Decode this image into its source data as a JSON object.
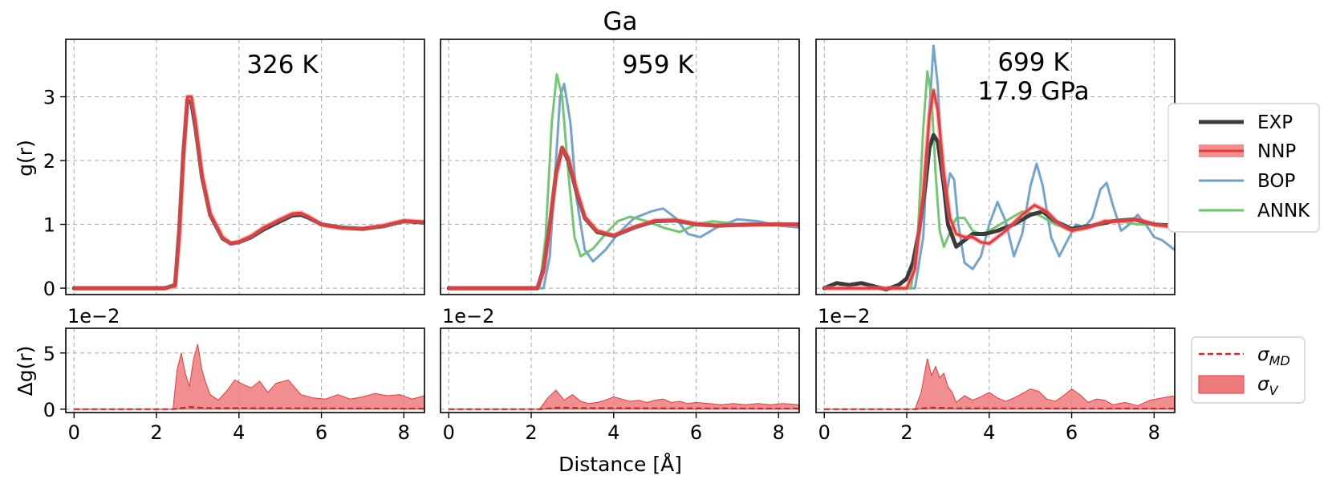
{
  "figure": {
    "title": "Ga",
    "xlabel": "Distance [Å]",
    "ylabel_top": "g(r)",
    "ylabel_bottom": "Δg(r)",
    "offset_text": "1e−2"
  },
  "colors": {
    "EXP": "#3b3b3b",
    "NNP": "#e8393b",
    "BOP": "#6a9fcb",
    "ANNK": "#6cc46c",
    "sigma_fill": "#ee7b7c",
    "sigma_line": "#d62728"
  },
  "legend_top": [
    "EXP",
    "NNP",
    "BOP",
    "ANNK"
  ],
  "legend_bottom": {
    "sigma_md": "MD",
    "sigma_v": "V"
  },
  "chart_data": [
    {
      "type": "line",
      "panel": "326 K",
      "labels": [
        "326 K"
      ],
      "xlim": [
        -0.2,
        8.5
      ],
      "ylim": [
        -0.1,
        3.9
      ],
      "xticks": [
        0,
        2,
        4,
        6,
        8
      ],
      "yticks": [
        0,
        1,
        2,
        3
      ],
      "grid": true,
      "series": [
        {
          "name": "EXP",
          "x": [
            0,
            2.2,
            2.45,
            2.55,
            2.65,
            2.75,
            2.85,
            2.95,
            3.1,
            3.3,
            3.6,
            3.8,
            4.0,
            4.3,
            4.6,
            5.0,
            5.3,
            5.5,
            5.7,
            6.0,
            6.5,
            7.0,
            7.5,
            8.0,
            8.5
          ],
          "y": [
            0,
            0,
            0.05,
            0.9,
            2.1,
            2.95,
            2.9,
            2.5,
            1.75,
            1.15,
            0.78,
            0.7,
            0.72,
            0.8,
            0.92,
            1.05,
            1.14,
            1.15,
            1.1,
            1.0,
            0.95,
            0.93,
            0.97,
            1.05,
            1.03
          ]
        },
        {
          "name": "NNP",
          "x": [
            0,
            2.2,
            2.45,
            2.55,
            2.65,
            2.75,
            2.85,
            2.95,
            3.1,
            3.3,
            3.6,
            3.8,
            4.0,
            4.3,
            4.6,
            5.0,
            5.3,
            5.5,
            5.7,
            6.0,
            6.5,
            7.0,
            7.5,
            8.0,
            8.5
          ],
          "y": [
            0,
            0,
            0.03,
            0.75,
            2.0,
            3.0,
            3.0,
            2.6,
            1.8,
            1.18,
            0.8,
            0.7,
            0.73,
            0.82,
            0.95,
            1.08,
            1.17,
            1.18,
            1.12,
            1.0,
            0.94,
            0.93,
            0.98,
            1.06,
            1.04
          ]
        }
      ],
      "delta": {
        "ylim": [
          -0.3,
          7.2
        ],
        "yticks": [
          0,
          5
        ],
        "sigma_md": {
          "x": [
            0,
            2.4,
            2.8,
            3.2,
            8.5
          ],
          "y": [
            0,
            0,
            0.2,
            0.1,
            0.05
          ]
        },
        "sigma_v": {
          "x": [
            0,
            2.4,
            2.5,
            2.6,
            2.7,
            2.8,
            2.9,
            3.0,
            3.1,
            3.2,
            3.3,
            3.5,
            3.7,
            3.9,
            4.1,
            4.3,
            4.5,
            4.7,
            4.9,
            5.2,
            5.5,
            5.8,
            6.1,
            6.4,
            6.7,
            7.0,
            7.3,
            7.6,
            7.9,
            8.2,
            8.5
          ],
          "y": [
            0,
            0,
            3.5,
            5.0,
            3.2,
            2.0,
            4.5,
            5.8,
            3.5,
            2.3,
            1.3,
            0.8,
            1.6,
            2.6,
            2.2,
            1.9,
            2.5,
            1.5,
            2.3,
            2.6,
            1.3,
            1.0,
            0.9,
            1.3,
            0.9,
            1.1,
            1.4,
            1.2,
            1.3,
            0.9,
            1.2
          ]
        }
      }
    },
    {
      "type": "line",
      "panel": "959 K",
      "labels": [
        "959 K"
      ],
      "xlim": [
        -0.2,
        8.5
      ],
      "ylim": [
        -0.1,
        3.9
      ],
      "xticks": [
        0,
        2,
        4,
        6,
        8
      ],
      "yticks": [
        0,
        1,
        2,
        3
      ],
      "grid": true,
      "series": [
        {
          "name": "EXP",
          "x": [
            0,
            2.15,
            2.3,
            2.45,
            2.6,
            2.75,
            2.9,
            3.1,
            3.3,
            3.6,
            4.0,
            4.5,
            5.0,
            5.5,
            6.0,
            6.5,
            7.0,
            7.5,
            8.0,
            8.5
          ],
          "y": [
            0,
            0,
            0.3,
            1.0,
            1.8,
            2.2,
            2.0,
            1.5,
            1.1,
            0.88,
            0.82,
            0.95,
            1.05,
            1.06,
            1.0,
            0.98,
            0.99,
            1.0,
            1.0,
            1.0
          ]
        },
        {
          "name": "NNP",
          "x": [
            0,
            2.15,
            2.3,
            2.45,
            2.6,
            2.75,
            2.9,
            3.1,
            3.3,
            3.6,
            4.0,
            4.5,
            5.0,
            5.5,
            6.0,
            6.5,
            7.0,
            7.5,
            8.0,
            8.5
          ],
          "y": [
            0,
            0,
            0.25,
            0.95,
            1.75,
            2.2,
            2.05,
            1.55,
            1.12,
            0.9,
            0.83,
            0.96,
            1.06,
            1.07,
            1.01,
            0.98,
            0.99,
            1.0,
            1.0,
            1.0
          ]
        },
        {
          "name": "BOP",
          "x": [
            0,
            2.3,
            2.45,
            2.6,
            2.7,
            2.8,
            2.95,
            3.1,
            3.3,
            3.5,
            3.8,
            4.1,
            4.5,
            4.9,
            5.2,
            5.5,
            5.8,
            6.1,
            6.5,
            7.0,
            7.5,
            8.0,
            8.5
          ],
          "y": [
            0,
            0,
            0.5,
            2.0,
            3.0,
            3.2,
            2.6,
            1.4,
            0.6,
            0.42,
            0.6,
            0.85,
            1.1,
            1.2,
            1.25,
            1.1,
            0.85,
            0.8,
            0.95,
            1.08,
            1.05,
            0.98,
            0.95
          ]
        },
        {
          "name": "ANNK",
          "x": [
            0,
            2.2,
            2.35,
            2.5,
            2.62,
            2.75,
            2.9,
            3.05,
            3.2,
            3.5,
            3.8,
            4.1,
            4.4,
            4.8,
            5.2,
            5.6,
            6.0,
            6.4,
            6.8,
            7.2,
            7.6,
            8.0,
            8.5
          ],
          "y": [
            0,
            0,
            0.8,
            2.6,
            3.35,
            3.0,
            1.8,
            0.8,
            0.5,
            0.62,
            0.85,
            1.05,
            1.12,
            1.05,
            0.95,
            0.88,
            1.0,
            1.05,
            1.02,
            0.98,
            1.0,
            1.02,
            1.0
          ]
        }
      ],
      "delta": {
        "ylim": [
          -0.3,
          7.2
        ],
        "yticks": [
          0,
          5
        ],
        "sigma_md": {
          "x": [
            0,
            2.2,
            2.7,
            3.2,
            8.5
          ],
          "y": [
            0,
            0,
            0.15,
            0.1,
            0.05
          ]
        },
        "sigma_v": {
          "x": [
            0,
            2.2,
            2.4,
            2.6,
            2.8,
            3.0,
            3.2,
            3.4,
            3.6,
            3.8,
            4.0,
            4.2,
            4.4,
            4.6,
            4.8,
            5.0,
            5.2,
            5.4,
            5.6,
            5.8,
            6.0,
            6.3,
            6.6,
            6.9,
            7.2,
            7.5,
            7.8,
            8.1,
            8.5
          ],
          "y": [
            0,
            0,
            1.0,
            1.7,
            0.8,
            1.3,
            0.7,
            0.5,
            0.6,
            0.8,
            1.1,
            0.9,
            0.7,
            0.8,
            0.6,
            0.8,
            0.9,
            0.6,
            0.7,
            0.5,
            0.6,
            0.5,
            0.4,
            0.5,
            0.4,
            0.5,
            0.4,
            0.5,
            0.4
          ]
        }
      }
    },
    {
      "type": "line",
      "panel": "699 K 17.9 GPa",
      "labels": [
        "699 K",
        "17.9 GPa"
      ],
      "xlim": [
        -0.2,
        8.5
      ],
      "ylim": [
        -0.1,
        3.9
      ],
      "xticks": [
        0,
        2,
        4,
        6,
        8
      ],
      "yticks": [
        0,
        1,
        2,
        3
      ],
      "grid": true,
      "series": [
        {
          "name": "EXP",
          "x": [
            0,
            0.3,
            0.6,
            0.9,
            1.2,
            1.5,
            1.8,
            2.0,
            2.15,
            2.3,
            2.45,
            2.55,
            2.65,
            2.75,
            2.9,
            3.0,
            3.2,
            3.4,
            3.6,
            3.9,
            4.2,
            4.6,
            5.0,
            5.3,
            5.6,
            6.0,
            6.5,
            7.0,
            7.5,
            8.0,
            8.5
          ],
          "y": [
            0,
            0.08,
            0.05,
            0.08,
            0.03,
            -0.02,
            0.05,
            0.15,
            0.4,
            0.9,
            1.6,
            2.2,
            2.4,
            2.3,
            1.6,
            1.0,
            0.65,
            0.75,
            0.85,
            0.85,
            0.9,
            1.0,
            1.15,
            1.2,
            1.05,
            0.93,
            0.98,
            1.05,
            1.08,
            1.0,
            0.98
          ]
        },
        {
          "name": "NNP",
          "x": [
            0,
            2.0,
            2.2,
            2.4,
            2.55,
            2.65,
            2.75,
            2.9,
            3.05,
            3.2,
            3.4,
            3.6,
            3.8,
            4.0,
            4.4,
            4.8,
            5.1,
            5.4,
            5.7,
            6.0,
            6.4,
            6.8,
            7.2,
            7.6,
            8.0,
            8.5
          ],
          "y": [
            0,
            0,
            0.3,
            1.5,
            2.7,
            3.1,
            2.8,
            1.8,
            1.1,
            0.85,
            0.8,
            0.8,
            0.72,
            0.7,
            0.9,
            1.15,
            1.3,
            1.2,
            1.0,
            0.9,
            0.95,
            1.05,
            1.05,
            1.08,
            1.0,
            0.95
          ]
        },
        {
          "name": "BOP",
          "x": [
            0,
            2.2,
            2.4,
            2.55,
            2.65,
            2.75,
            2.85,
            2.95,
            3.05,
            3.15,
            3.25,
            3.4,
            3.6,
            3.8,
            4.0,
            4.2,
            4.4,
            4.6,
            4.8,
            5.0,
            5.15,
            5.3,
            5.5,
            5.7,
            5.9,
            6.1,
            6.3,
            6.5,
            6.7,
            6.85,
            7.0,
            7.2,
            7.4,
            7.6,
            7.8,
            8.0,
            8.2,
            8.5
          ],
          "y": [
            0,
            0,
            0.8,
            2.8,
            3.8,
            3.2,
            2.0,
            1.4,
            1.8,
            1.7,
            1.0,
            0.4,
            0.3,
            0.5,
            1.0,
            1.35,
            1.05,
            0.5,
            0.85,
            1.6,
            1.95,
            1.6,
            0.8,
            0.5,
            0.75,
            1.0,
            0.95,
            1.1,
            1.55,
            1.65,
            1.3,
            0.9,
            1.0,
            1.15,
            1.0,
            0.8,
            0.75,
            0.6
          ]
        },
        {
          "name": "ANNK",
          "x": [
            0,
            2.1,
            2.25,
            2.4,
            2.5,
            2.6,
            2.7,
            2.8,
            2.9,
            3.0,
            3.2,
            3.4,
            3.6,
            3.8,
            4.0,
            4.4,
            4.8,
            5.2,
            5.6,
            6.0,
            6.4,
            6.8,
            7.2,
            7.6,
            8.0,
            8.5
          ],
          "y": [
            0,
            0,
            0.6,
            2.5,
            3.4,
            3.0,
            1.8,
            0.9,
            0.65,
            0.8,
            1.1,
            1.1,
            0.9,
            0.85,
            0.9,
            1.05,
            1.2,
            1.15,
            1.0,
            0.9,
            0.95,
            1.05,
            1.05,
            1.0,
            1.0,
            1.0
          ]
        }
      ],
      "delta": {
        "ylim": [
          -0.3,
          7.2
        ],
        "yticks": [
          0,
          5
        ],
        "sigma_md": {
          "x": [
            0,
            2.2,
            2.6,
            3.2,
            8.5
          ],
          "y": [
            0,
            0,
            0.15,
            0.08,
            0.05
          ]
        },
        "sigma_v": {
          "x": [
            0,
            2.2,
            2.35,
            2.5,
            2.6,
            2.7,
            2.8,
            2.9,
            3.0,
            3.1,
            3.2,
            3.4,
            3.6,
            3.8,
            4.0,
            4.2,
            4.4,
            4.6,
            4.8,
            5.0,
            5.2,
            5.4,
            5.6,
            5.8,
            6.0,
            6.2,
            6.4,
            6.6,
            6.8,
            7.0,
            7.3,
            7.6,
            7.9,
            8.2,
            8.5
          ],
          "y": [
            0,
            0,
            1.5,
            4.5,
            3.0,
            3.8,
            2.8,
            3.2,
            2.0,
            1.5,
            0.6,
            1.2,
            0.8,
            1.1,
            1.5,
            1.0,
            0.7,
            1.0,
            1.4,
            1.8,
            1.6,
            0.9,
            0.7,
            1.2,
            1.8,
            1.3,
            0.6,
            0.9,
            0.8,
            0.4,
            0.6,
            0.3,
            0.8,
            1.0,
            1.2
          ]
        }
      }
    }
  ]
}
